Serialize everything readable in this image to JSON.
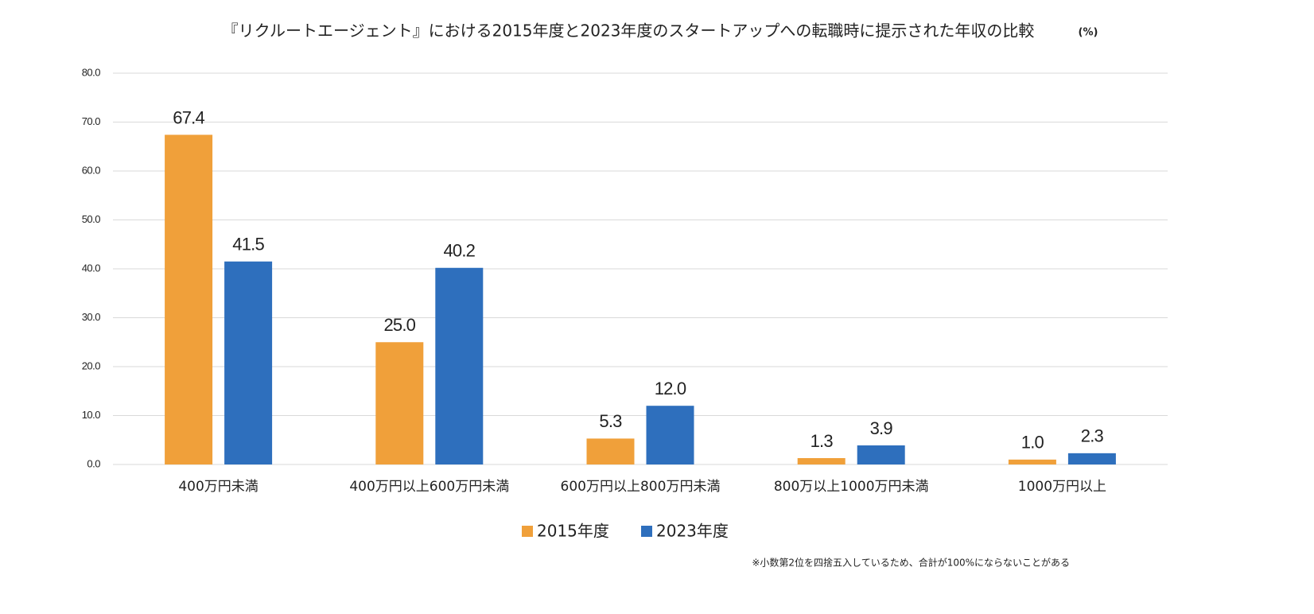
{
  "chart_data": {
    "type": "bar",
    "title": "『リクルートエージェント』における2015年度と2023年度のスタートアップへの転職時に提示された年収の比較",
    "unit_label": "(%)",
    "note": "※小数第2位を四捨五入しているため、合計が100%にならないことがある",
    "categories": [
      "400万円未満",
      "400万円以上600万円未満",
      "600万円以上800万円未満",
      "800万以上1000万円未満",
      "1000万円以上"
    ],
    "series": [
      {
        "name": "2015年度",
        "color": "#f0a03a",
        "values": [
          67.4,
          25.0,
          5.3,
          1.3,
          1.0
        ],
        "value_labels": [
          "67.4",
          "25.0",
          "5.3",
          "1.3",
          "1.0"
        ]
      },
      {
        "name": "2023年度",
        "color": "#2e6fbd",
        "values": [
          41.5,
          40.2,
          12.0,
          3.9,
          2.3
        ],
        "value_labels": [
          "41.5",
          "40.2",
          "12.0",
          "3.9",
          "2.3"
        ]
      }
    ],
    "ylim": [
      0,
      80
    ],
    "yticks": [
      {
        "value": 0,
        "label": "0.0"
      },
      {
        "value": 10,
        "label": "10.0"
      },
      {
        "value": 20,
        "label": "20.0"
      },
      {
        "value": 30,
        "label": "30.0"
      },
      {
        "value": 40,
        "label": "40.0"
      },
      {
        "value": 50,
        "label": "50.0"
      },
      {
        "value": 60,
        "label": "60.0"
      },
      {
        "value": 70,
        "label": "70.0"
      },
      {
        "value": 80,
        "label": "80.0"
      }
    ],
    "grid": true,
    "legend": "bottom"
  }
}
